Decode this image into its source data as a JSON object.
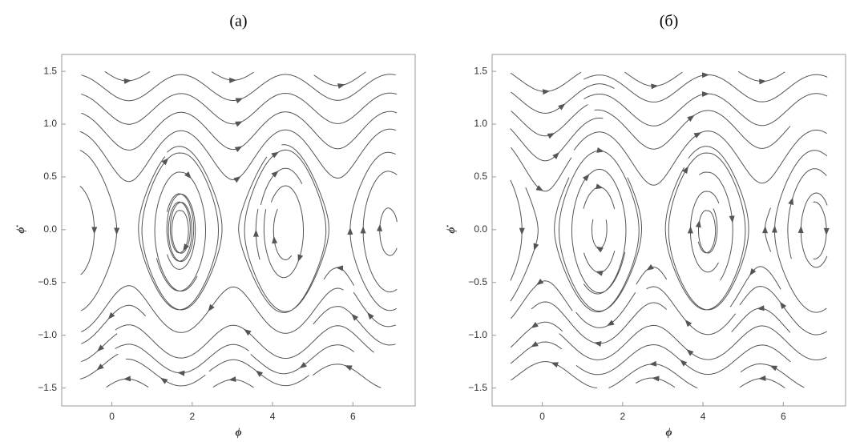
{
  "chart_data": [
    {
      "type": "stream",
      "title": "(a)",
      "x_label": "ϕ",
      "y_label": "ϕ̇",
      "color": "#555555",
      "xlim": [
        -1.25,
        7.55
      ],
      "ylim": [
        -1.67,
        1.66
      ],
      "xticks": [
        0,
        2,
        4,
        6
      ],
      "yticks": [
        1.5,
        {
          "value": 1,
          "label": "1.0"
        },
        0.5,
        {
          "value": 0,
          "label": "0.0"
        },
        {
          "value": -0.5,
          "label": "−0.5"
        },
        {
          "value": -1,
          "label": "−1.0"
        },
        {
          "value": -1.5,
          "label": "−1.5"
        }
      ]
    },
    {
      "type": "stream",
      "title": "(б)",
      "x_label": "ϕ",
      "y_label": "ϕ̇",
      "color": "#555555",
      "xlim": [
        -1.25,
        7.55
      ],
      "ylim": [
        -1.67,
        1.66
      ],
      "xticks": [
        0,
        2,
        4,
        6
      ],
      "yticks": [
        1.5,
        {
          "value": 1,
          "label": "1.0"
        },
        0.5,
        {
          "value": 0,
          "label": "0.0"
        },
        {
          "value": -0.5,
          "label": "−0.5"
        },
        {
          "value": -1,
          "label": "−1.0"
        },
        {
          "value": -1.5,
          "label": "−1.5"
        }
      ]
    }
  ]
}
